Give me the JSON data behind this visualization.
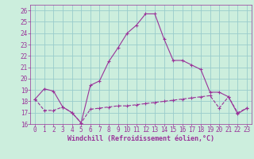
{
  "xlabel": "Windchill (Refroidissement éolien,°C)",
  "bg_color": "#cceedd",
  "grid_color": "#99cccc",
  "line_color": "#993399",
  "x_ticks": [
    0,
    1,
    2,
    3,
    4,
    5,
    6,
    7,
    8,
    9,
    10,
    11,
    12,
    13,
    14,
    15,
    16,
    17,
    18,
    19,
    20,
    21,
    22,
    23
  ],
  "ylim": [
    16,
    26.5
  ],
  "xlim": [
    -0.5,
    23.5
  ],
  "yticks": [
    16,
    17,
    18,
    19,
    20,
    21,
    22,
    23,
    24,
    25,
    26
  ],
  "line1_x": [
    0,
    1,
    2,
    3,
    4,
    5,
    6,
    7,
    8,
    9,
    10,
    11,
    12,
    13,
    14,
    15,
    16,
    17,
    18,
    19,
    20,
    21,
    22,
    23
  ],
  "line1_y": [
    18.2,
    19.1,
    18.9,
    17.5,
    17.0,
    16.1,
    19.4,
    19.8,
    21.5,
    22.7,
    24.0,
    24.7,
    25.7,
    25.7,
    23.5,
    21.6,
    21.6,
    21.2,
    20.8,
    18.8,
    18.8,
    18.4,
    16.9,
    17.4
  ],
  "line2_x": [
    0,
    1,
    2,
    3,
    4,
    5,
    6,
    7,
    8,
    9,
    10,
    11,
    12,
    13,
    14,
    15,
    16,
    17,
    18,
    19,
    20,
    21,
    22,
    23
  ],
  "line2_y": [
    18.2,
    17.2,
    17.2,
    17.5,
    17.0,
    16.1,
    17.3,
    17.4,
    17.5,
    17.6,
    17.6,
    17.7,
    17.8,
    17.9,
    18.0,
    18.1,
    18.2,
    18.3,
    18.4,
    18.5,
    17.4,
    18.4,
    17.0,
    17.4
  ],
  "tick_fontsize": 5.5,
  "xlabel_fontsize": 6.0
}
